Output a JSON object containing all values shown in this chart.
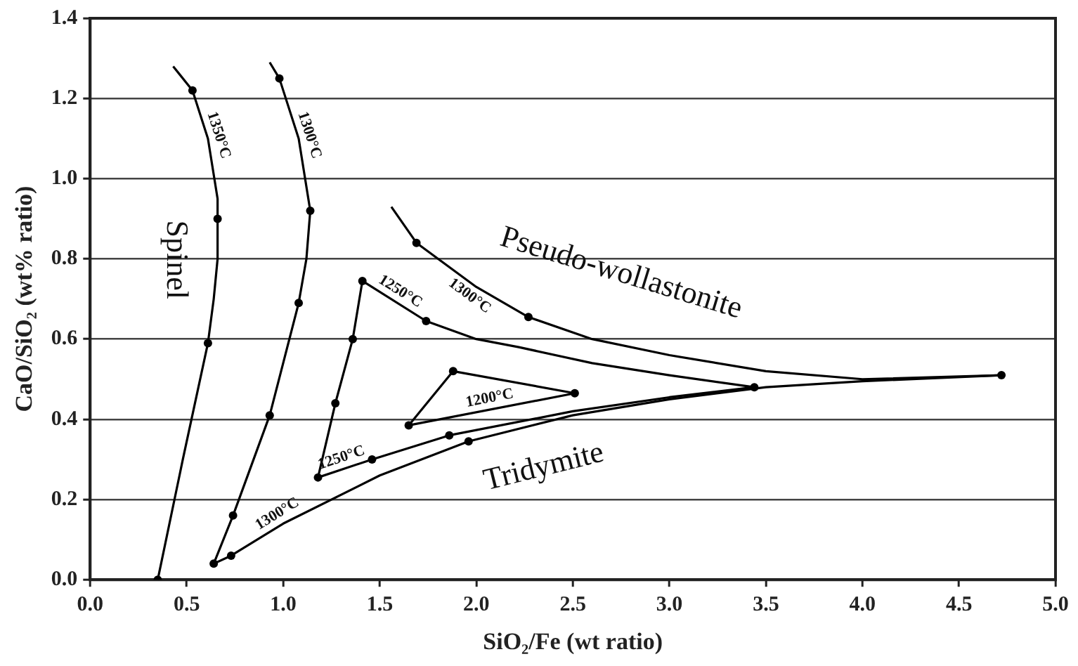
{
  "chart_data": {
    "type": "line",
    "xlabel": "SiO₂/Fe (wt ratio)",
    "ylabel": "CaO/SiO₂ (wt% ratio)",
    "xlim": [
      0,
      5
    ],
    "ylim": [
      0,
      1.4
    ],
    "xticks": [
      {
        "value": 0,
        "label": "0.0"
      },
      {
        "value": 0.5,
        "label": "0.5"
      },
      {
        "value": 1,
        "label": "1.0"
      },
      {
        "value": 1.5,
        "label": "1.5"
      },
      {
        "value": 2,
        "label": "2.0"
      },
      {
        "value": 2.5,
        "label": "2.5"
      },
      {
        "value": 3,
        "label": "3.0"
      },
      {
        "value": 3.5,
        "label": "3.5"
      },
      {
        "value": 4,
        "label": "4.0"
      },
      {
        "value": 4.5,
        "label": "4.5"
      },
      {
        "value": 5,
        "label": "5.0"
      }
    ],
    "yticks": [
      {
        "value": 0,
        "label": "0.0"
      },
      {
        "value": 0.2,
        "label": "0.2"
      },
      {
        "value": 0.4,
        "label": "0.4"
      },
      {
        "value": 0.6,
        "label": "0.6"
      },
      {
        "value": 0.8,
        "label": "0.8"
      },
      {
        "value": 1,
        "label": "1.0"
      },
      {
        "value": 1.2,
        "label": "1.2"
      },
      {
        "value": 1.4,
        "label": "1.4"
      }
    ],
    "grid": "y",
    "legend": false,
    "series": [
      {
        "marker": "none",
        "color": "#000000",
        "x": [
          0.43,
          0.53,
          0.61,
          0.66,
          0.66,
          0.64,
          0.61,
          0.48,
          0.35
        ],
        "values": [
          1.28,
          1.22,
          1.1,
          0.95,
          0.8,
          0.7,
          0.59,
          0.3,
          0
        ]
      },
      {
        "marker": "none",
        "color": "#000000",
        "x": [
          0.93,
          0.98,
          1.08,
          1.14,
          1.12,
          1.08,
          0.93,
          0.74,
          0.64
        ],
        "values": [
          1.29,
          1.25,
          1.1,
          0.92,
          0.8,
          0.69,
          0.41,
          0.16,
          0.04
        ]
      },
      {
        "marker": "none",
        "color": "#000000",
        "x": [
          0.64,
          0.73,
          1.0,
          1.5,
          1.96,
          2.5,
          3.0,
          3.5,
          4.0,
          4.72
        ],
        "values": [
          0.04,
          0.06,
          0.14,
          0.26,
          0.345,
          0.41,
          0.45,
          0.48,
          0.495,
          0.51
        ]
      },
      {
        "marker": "none",
        "color": "#000000",
        "x": [
          1.56,
          1.69,
          2.0,
          2.27,
          2.6,
          3.0,
          3.5,
          4.0,
          4.72
        ],
        "values": [
          0.93,
          0.84,
          0.73,
          0.655,
          0.6,
          0.56,
          0.52,
          0.5,
          0.51
        ]
      },
      {
        "marker": "none",
        "color": "#000000",
        "x": [
          1.18,
          1.27,
          1.36,
          1.41,
          1.74,
          2.0,
          2.22,
          2.6,
          3.0,
          3.44
        ],
        "values": [
          0.255,
          0.44,
          0.6,
          0.745,
          0.645,
          0.6,
          0.58,
          0.54,
          0.51,
          0.48
        ]
      },
      {
        "marker": "none",
        "color": "#000000",
        "x": [
          1.18,
          1.46,
          1.86,
          2.5,
          3.0,
          3.44
        ],
        "values": [
          0.255,
          0.3,
          0.36,
          0.42,
          0.455,
          0.48
        ]
      },
      {
        "marker": "none",
        "color": "#000000",
        "x": [
          1.65,
          1.88,
          2.51
        ],
        "values": [
          0.385,
          0.52,
          0.465
        ]
      },
      {
        "marker": "none",
        "color": "#000000",
        "x": [
          1.65,
          2.51
        ],
        "values": [
          0.385,
          0.465
        ]
      },
      {
        "type": "scatter",
        "marker": "circle",
        "color": "#000000",
        "x": [
          0.53,
          0.66,
          0.61,
          0.35,
          0.98,
          1.14,
          1.08,
          0.93,
          0.74,
          0.64,
          0.73,
          1.96,
          4.72,
          1.69,
          2.27,
          1.41,
          1.36,
          1.27,
          1.74,
          1.18,
          1.46,
          1.86,
          3.44,
          1.65,
          1.88,
          2.51
        ],
        "values": [
          1.22,
          0.9,
          0.59,
          0,
          1.25,
          0.92,
          0.69,
          0.41,
          0.16,
          0.04,
          0.06,
          0.345,
          0.51,
          0.84,
          0.655,
          0.745,
          0.6,
          0.44,
          0.645,
          0.255,
          0.3,
          0.36,
          0.48,
          0.385,
          0.52,
          0.465
        ]
      }
    ],
    "annotations": [
      {
        "text": "1350°C",
        "x": 0.61,
        "y": 1.1
      },
      {
        "text": "1300°C",
        "x": 1.08,
        "y": 1.1
      },
      "Spinel",
      "Pseudo-wollastonite",
      {
        "text": "1300°C",
        "x": 2.0,
        "y": 0.73
      },
      {
        "text": "1250°C",
        "x": 1.575,
        "y": 0.695
      },
      {
        "text": "1200°C",
        "x": 2.08,
        "y": 0.425
      },
      {
        "text": "1250°C",
        "x": 1.32,
        "y": 0.2775
      },
      {
        "text": "1300°C",
        "x": 1.0,
        "y": 0.14
      },
      "Tridymite"
    ]
  }
}
